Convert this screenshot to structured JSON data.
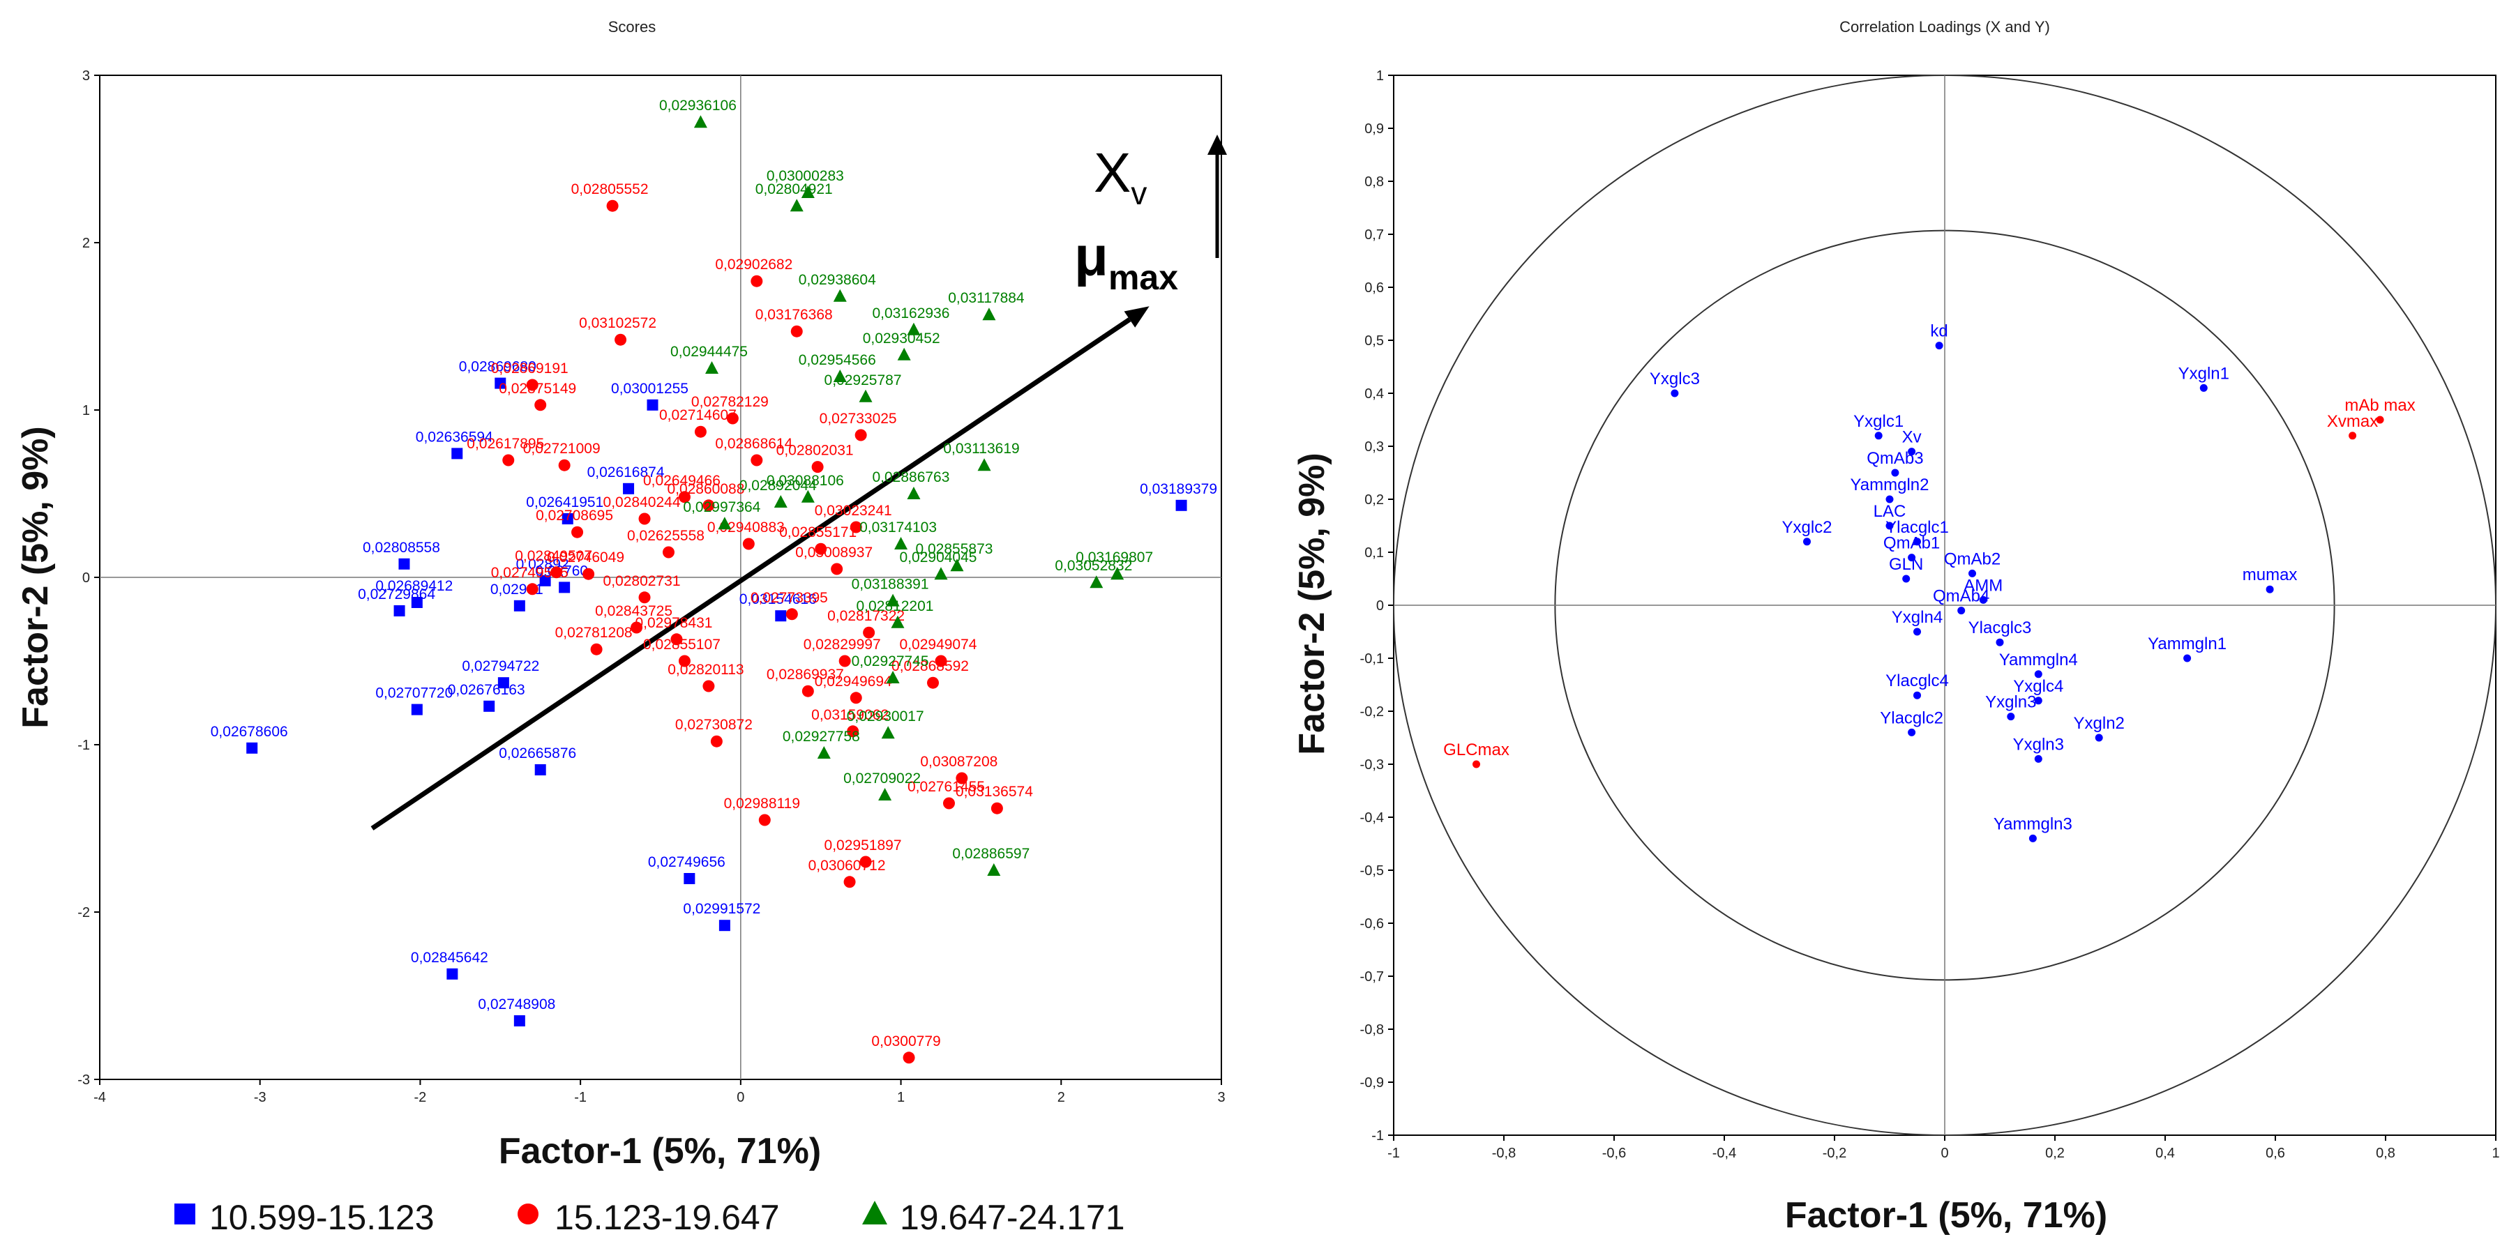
{
  "chart_data": [
    {
      "type": "scatter",
      "title": "Scores",
      "xlabel": "Factor-1 (5%, 71%)",
      "ylabel": "Factor-2 (5%, 9%)",
      "xlim": [
        -4,
        3
      ],
      "ylim": [
        -3,
        3
      ],
      "xticks": [
        -4,
        -3,
        -2,
        -1,
        0,
        1,
        2,
        3
      ],
      "yticks": [
        -3,
        -2,
        -1,
        0,
        1,
        2,
        3
      ],
      "grid": false,
      "legend": [
        {
          "label": "10.599-15.123",
          "color": "#0000ff",
          "marker": "square"
        },
        {
          "label": "15.123-19.647",
          "color": "#ff0000",
          "marker": "circle"
        },
        {
          "label": "19.647-24.171",
          "color": "#008000",
          "marker": "triangle"
        }
      ],
      "arrow_annotation": {
        "from": [
          -2.3,
          -1.5
        ],
        "to": [
          2.55,
          1.62
        ],
        "label_top": "X",
        "label_top_sub": "v",
        "label_bottom": "μ",
        "label_bottom_sub": "max"
      },
      "series": [
        {
          "name": "10.599-15.123",
          "color": "#0000ff",
          "marker": "square",
          "points": [
            {
              "x": -1.5,
              "y": 1.16,
              "label": "0,02869680"
            },
            {
              "x": -0.55,
              "y": 1.03,
              "label": "0,03001255"
            },
            {
              "x": -1.77,
              "y": 0.74,
              "label": "0,02636594"
            },
            {
              "x": -0.7,
              "y": 0.53,
              "label": "0,02616874"
            },
            {
              "x": -1.08,
              "y": 0.35,
              "label": "0,02641951"
            },
            {
              "x": 2.75,
              "y": 0.43,
              "label": "0,03189379"
            },
            {
              "x": -2.1,
              "y": 0.08,
              "label": "0,02808558"
            },
            {
              "x": -2.02,
              "y": -0.15,
              "label": "0,02689412"
            },
            {
              "x": -2.13,
              "y": -0.2,
              "label": "0,02729864"
            },
            {
              "x": -1.38,
              "y": -0.17,
              "label": "0,02961"
            },
            {
              "x": -1.22,
              "y": -0.02,
              "label": "0,02892"
            },
            {
              "x": -1.1,
              "y": -0.06,
              "label": "0,02760"
            },
            {
              "x": 0.25,
              "y": -0.23,
              "label": "0,03154616"
            },
            {
              "x": -1.48,
              "y": -0.63,
              "label": "0,02794722"
            },
            {
              "x": -2.02,
              "y": -0.79,
              "label": "0,02707720"
            },
            {
              "x": -1.57,
              "y": -0.77,
              "label": "0,02676163"
            },
            {
              "x": -3.05,
              "y": -1.02,
              "label": "0,02678606"
            },
            {
              "x": -1.25,
              "y": -1.15,
              "label": "0,02665876"
            },
            {
              "x": -0.32,
              "y": -1.8,
              "label": "0,02749656"
            },
            {
              "x": -0.1,
              "y": -2.08,
              "label": "0,02991572"
            },
            {
              "x": -1.8,
              "y": -2.37,
              "label": "0,02845642"
            },
            {
              "x": -1.38,
              "y": -2.65,
              "label": "0,02748908"
            }
          ]
        },
        {
          "name": "15.123-19.647",
          "color": "#ff0000",
          "marker": "circle",
          "points": [
            {
              "x": -0.8,
              "y": 2.22,
              "label": "0,02805552"
            },
            {
              "x": 0.1,
              "y": 1.77,
              "label": "0,02902682"
            },
            {
              "x": -0.75,
              "y": 1.42,
              "label": "0,03102572"
            },
            {
              "x": 0.35,
              "y": 1.47,
              "label": "0,03176368"
            },
            {
              "x": -1.3,
              "y": 1.15,
              "label": "0,02869191"
            },
            {
              "x": -1.25,
              "y": 1.03,
              "label": "0,02875149"
            },
            {
              "x": -0.25,
              "y": 0.87,
              "label": "0,02714607"
            },
            {
              "x": -0.05,
              "y": 0.95,
              "label": "0,02782129"
            },
            {
              "x": 0.75,
              "y": 0.85,
              "label": "0,02733025"
            },
            {
              "x": 0.1,
              "y": 0.7,
              "label": "0,02868614"
            },
            {
              "x": 0.48,
              "y": 0.66,
              "label": "0,02802031"
            },
            {
              "x": -1.45,
              "y": 0.7,
              "label": "0,02617895"
            },
            {
              "x": -1.1,
              "y": 0.67,
              "label": "0,02721009"
            },
            {
              "x": -0.35,
              "y": 0.48,
              "label": "0,02649466"
            },
            {
              "x": -1.02,
              "y": 0.27,
              "label": "0,02708695"
            },
            {
              "x": -0.6,
              "y": 0.35,
              "label": "0,02840244"
            },
            {
              "x": -0.2,
              "y": 0.43,
              "label": "0,02860088"
            },
            {
              "x": 0.72,
              "y": 0.3,
              "label": "0,03023241"
            },
            {
              "x": -1.15,
              "y": 0.03,
              "label": "0,02849507"
            },
            {
              "x": -0.45,
              "y": 0.15,
              "label": "0,02625558"
            },
            {
              "x": 0.05,
              "y": 0.2,
              "label": "0,02940883"
            },
            {
              "x": 0.5,
              "y": 0.17,
              "label": "0,02855171"
            },
            {
              "x": -1.3,
              "y": -0.07,
              "label": "0,02749505"
            },
            {
              "x": -0.95,
              "y": 0.02,
              "label": "0,02746049"
            },
            {
              "x": 0.6,
              "y": 0.05,
              "label": "0,03008937"
            },
            {
              "x": -0.6,
              "y": -0.12,
              "label": "0,02802731"
            },
            {
              "x": -0.65,
              "y": -0.3,
              "label": "0,02843725"
            },
            {
              "x": -0.4,
              "y": -0.37,
              "label": "0,02978431"
            },
            {
              "x": 0.32,
              "y": -0.22,
              "label": "0,02773395"
            },
            {
              "x": -0.9,
              "y": -0.43,
              "label": "0,02781208"
            },
            {
              "x": -0.35,
              "y": -0.5,
              "label": "0,02855107"
            },
            {
              "x": 0.8,
              "y": -0.33,
              "label": "0,02817322"
            },
            {
              "x": 0.65,
              "y": -0.5,
              "label": "0,02829997"
            },
            {
              "x": 1.25,
              "y": -0.5,
              "label": "0,02949074"
            },
            {
              "x": 0.42,
              "y": -0.68,
              "label": "0,02869937"
            },
            {
              "x": -0.2,
              "y": -0.65,
              "label": "0,02820113"
            },
            {
              "x": 1.2,
              "y": -0.63,
              "label": "0,02868592"
            },
            {
              "x": 0.72,
              "y": -0.72,
              "label": "0,02949694"
            },
            {
              "x": -0.15,
              "y": -0.98,
              "label": "0,02730872"
            },
            {
              "x": 0.7,
              "y": -0.92,
              "label": "0,03159062"
            },
            {
              "x": 1.38,
              "y": -1.2,
              "label": "0,03087208"
            },
            {
              "x": 1.6,
              "y": -1.38,
              "label": "0,03136574"
            },
            {
              "x": 1.3,
              "y": -1.35,
              "label": "0,02761455"
            },
            {
              "x": 0.15,
              "y": -1.45,
              "label": "0,02988119"
            },
            {
              "x": 0.78,
              "y": -1.7,
              "label": "0,02951897"
            },
            {
              "x": 0.68,
              "y": -1.82,
              "label": "0,03060712"
            },
            {
              "x": 1.05,
              "y": -2.87,
              "label": "0,0300779"
            }
          ]
        },
        {
          "name": "19.647-24.171",
          "color": "#008000",
          "marker": "triangle",
          "points": [
            {
              "x": -0.25,
              "y": 2.72,
              "label": "0,02936106"
            },
            {
              "x": 0.35,
              "y": 2.22,
              "label": "0,02804921"
            },
            {
              "x": 0.42,
              "y": 2.3,
              "label": "0,03000283"
            },
            {
              "x": 0.62,
              "y": 1.68,
              "label": "0,02938604"
            },
            {
              "x": 1.55,
              "y": 1.57,
              "label": "0,03117884"
            },
            {
              "x": 1.08,
              "y": 1.48,
              "label": "0,03162936"
            },
            {
              "x": -0.18,
              "y": 1.25,
              "label": "0,02944475"
            },
            {
              "x": 1.02,
              "y": 1.33,
              "label": "0,02930452"
            },
            {
              "x": 0.62,
              "y": 1.2,
              "label": "0,02954566"
            },
            {
              "x": 0.78,
              "y": 1.08,
              "label": "0,02925787"
            },
            {
              "x": 1.52,
              "y": 0.67,
              "label": "0,03113619"
            },
            {
              "x": 0.42,
              "y": 0.48,
              "label": "0,03088106"
            },
            {
              "x": 1.08,
              "y": 0.5,
              "label": "0,02886763"
            },
            {
              "x": 0.25,
              "y": 0.45,
              "label": "0,02892044"
            },
            {
              "x": -0.1,
              "y": 0.32,
              "label": "0,02997364"
            },
            {
              "x": 1.0,
              "y": 0.2,
              "label": "0,03174103"
            },
            {
              "x": 1.35,
              "y": 0.07,
              "label": "0,02855873"
            },
            {
              "x": 1.25,
              "y": 0.02,
              "label": "0,02904045"
            },
            {
              "x": 2.22,
              "y": -0.03,
              "label": "0,03052832"
            },
            {
              "x": 2.35,
              "y": 0.02,
              "label": "0,03169807"
            },
            {
              "x": 0.95,
              "y": -0.14,
              "label": "0,03188391"
            },
            {
              "x": 0.98,
              "y": -0.27,
              "label": "0,02812201"
            },
            {
              "x": 0.95,
              "y": -0.6,
              "label": "0,02927745"
            },
            {
              "x": 0.52,
              "y": -1.05,
              "label": "0,02927758"
            },
            {
              "x": 0.92,
              "y": -0.93,
              "label": "0,02930017"
            },
            {
              "x": 0.9,
              "y": -1.3,
              "label": "0,02709022"
            },
            {
              "x": 1.58,
              "y": -1.75,
              "label": "0,02886597"
            }
          ]
        }
      ]
    },
    {
      "type": "scatter",
      "title": "Correlation Loadings (X and Y)",
      "xlabel": "Factor-1 (5%, 71%)",
      "ylabel": "Factor-2 (5%, 9%)",
      "xlim": [
        -1,
        1
      ],
      "ylim": [
        -1,
        1
      ],
      "xticks": [
        "-1",
        "-0,8",
        "-0,6",
        "-0,4",
        "-0,2",
        "0",
        "0,2",
        "0,4",
        "0,6",
        "0,8",
        "1"
      ],
      "yticks": [
        "-1",
        "-0,9",
        "-0,8",
        "-0,7",
        "-0,6",
        "-0,5",
        "-0,4",
        "-0,3",
        "-0,2",
        "-0,1",
        "0",
        "0,1",
        "0,2",
        "0,3",
        "0,4",
        "0,5",
        "0,6",
        "0,7",
        "0,8",
        "0,9",
        "1"
      ],
      "circles": [
        0.7071,
        1.0
      ],
      "x_points": {
        "color": "#0000ff",
        "points": [
          {
            "x": -0.01,
            "y": 0.49,
            "label": "kd"
          },
          {
            "x": -0.49,
            "y": 0.4,
            "label": "Yxglc3"
          },
          {
            "x": 0.47,
            "y": 0.41,
            "label": "Yxgln1"
          },
          {
            "x": -0.12,
            "y": 0.32,
            "label": "Yxglc1"
          },
          {
            "x": -0.09,
            "y": 0.25,
            "label": "QmAb3"
          },
          {
            "x": -0.06,
            "y": 0.29,
            "label": "Xv"
          },
          {
            "x": -0.1,
            "y": 0.2,
            "label": "Yammgln2"
          },
          {
            "x": -0.25,
            "y": 0.12,
            "label": "Yxglc2"
          },
          {
            "x": -0.05,
            "y": 0.12,
            "label": "Ylacglc1"
          },
          {
            "x": -0.1,
            "y": 0.15,
            "label": "LAC"
          },
          {
            "x": -0.06,
            "y": 0.09,
            "label": "QmAb1"
          },
          {
            "x": 0.05,
            "y": 0.06,
            "label": "QmAb2"
          },
          {
            "x": 0.07,
            "y": 0.01,
            "label": "AMM"
          },
          {
            "x": 0.59,
            "y": 0.03,
            "label": "mumax"
          },
          {
            "x": -0.07,
            "y": 0.05,
            "label": "GLN"
          },
          {
            "x": -0.05,
            "y": -0.05,
            "label": "Yxgln4"
          },
          {
            "x": 0.03,
            "y": -0.01,
            "label": "QmAb4"
          },
          {
            "x": 0.44,
            "y": -0.1,
            "label": "Yammgln1"
          },
          {
            "x": 0.1,
            "y": -0.07,
            "label": "Ylacglc3"
          },
          {
            "x": 0.17,
            "y": -0.13,
            "label": "Yammgln4"
          },
          {
            "x": -0.05,
            "y": -0.17,
            "label": "Ylacglc4"
          },
          {
            "x": 0.17,
            "y": -0.18,
            "label": "Yxglc4"
          },
          {
            "x": -0.06,
            "y": -0.24,
            "label": "Ylacglc2"
          },
          {
            "x": 0.28,
            "y": -0.25,
            "label": "Yxgln2"
          },
          {
            "x": 0.12,
            "y": -0.21,
            "label": "Yxgln3"
          },
          {
            "x": 0.17,
            "y": -0.29,
            "label": "Yxgln3"
          },
          {
            "x": 0.16,
            "y": -0.44,
            "label": "Yammgln3"
          }
        ]
      },
      "y_points": {
        "color": "#ff0000",
        "points": [
          {
            "x": 0.79,
            "y": 0.35,
            "label": "mAb max"
          },
          {
            "x": 0.74,
            "y": 0.32,
            "label": "Xvmax"
          },
          {
            "x": -0.85,
            "y": -0.3,
            "label": "GLCmax"
          }
        ]
      }
    }
  ]
}
